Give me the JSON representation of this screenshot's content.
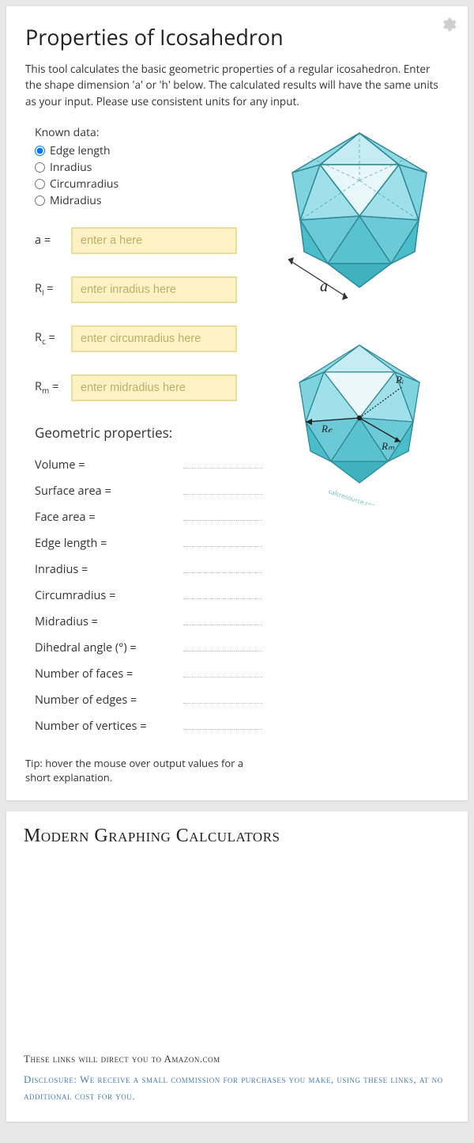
{
  "title": "Properties of Icosahedron",
  "intro": "This tool calculates the basic geometric properties of a regular icosahedron. Enter the shape dimension 'a' or 'h' below. The calculated results will have the same units as your input. Please use consistent units for any input.",
  "known": {
    "label": "Known data:",
    "options": [
      "Edge length",
      "Inradius",
      "Circumradius",
      "Midradius"
    ],
    "selected": 0
  },
  "inputs": [
    {
      "label_html": "a =",
      "placeholder": "enter a here",
      "name": "edge-a-input"
    },
    {
      "label_html": "R<sub>i</sub> =",
      "placeholder": "enter inradius here",
      "name": "inradius-input"
    },
    {
      "label_html": "R<sub>c</sub> =",
      "placeholder": "enter circumradius here",
      "name": "circumradius-input"
    },
    {
      "label_html": "R<sub>m</sub> =",
      "placeholder": "enter midradius here",
      "name": "midradius-input"
    }
  ],
  "props_header": "Geometric properties:",
  "properties": [
    "Volume =",
    "Surface area =",
    "Face area =",
    "Edge length =",
    "Inradius =",
    "Circumradius =",
    "Midradius =",
    "Dihedral angle (°) =",
    "Number of faces =",
    "Number of edges =",
    "Number of vertices ="
  ],
  "tip": "Tip: hover the mouse over output values for a short explanation.",
  "section2": {
    "heading": "Modern Graphing Calculators",
    "amazon_note": "These links will direct you to Amazon.com",
    "disclosure": "Disclosure: We receive a small commission for purchases you make, using these links, at no additional cost for you."
  },
  "colors": {
    "input_bg": "#fdf2c3",
    "input_border": "#e9dd99",
    "ico_fill_light": "#c5ecf2",
    "ico_fill_mid": "#7fd3df",
    "ico_fill_dark": "#4bbcc9",
    "ico_stroke": "#2e8a96",
    "link_blue": "#4a7db5"
  },
  "diagram1": {
    "edge_label": "a"
  },
  "diagram2": {
    "labels": {
      "ri": "Rᵢ",
      "rc": "R𝒸",
      "rm": "Rₘ"
    },
    "watermark": "calcresource.com"
  }
}
